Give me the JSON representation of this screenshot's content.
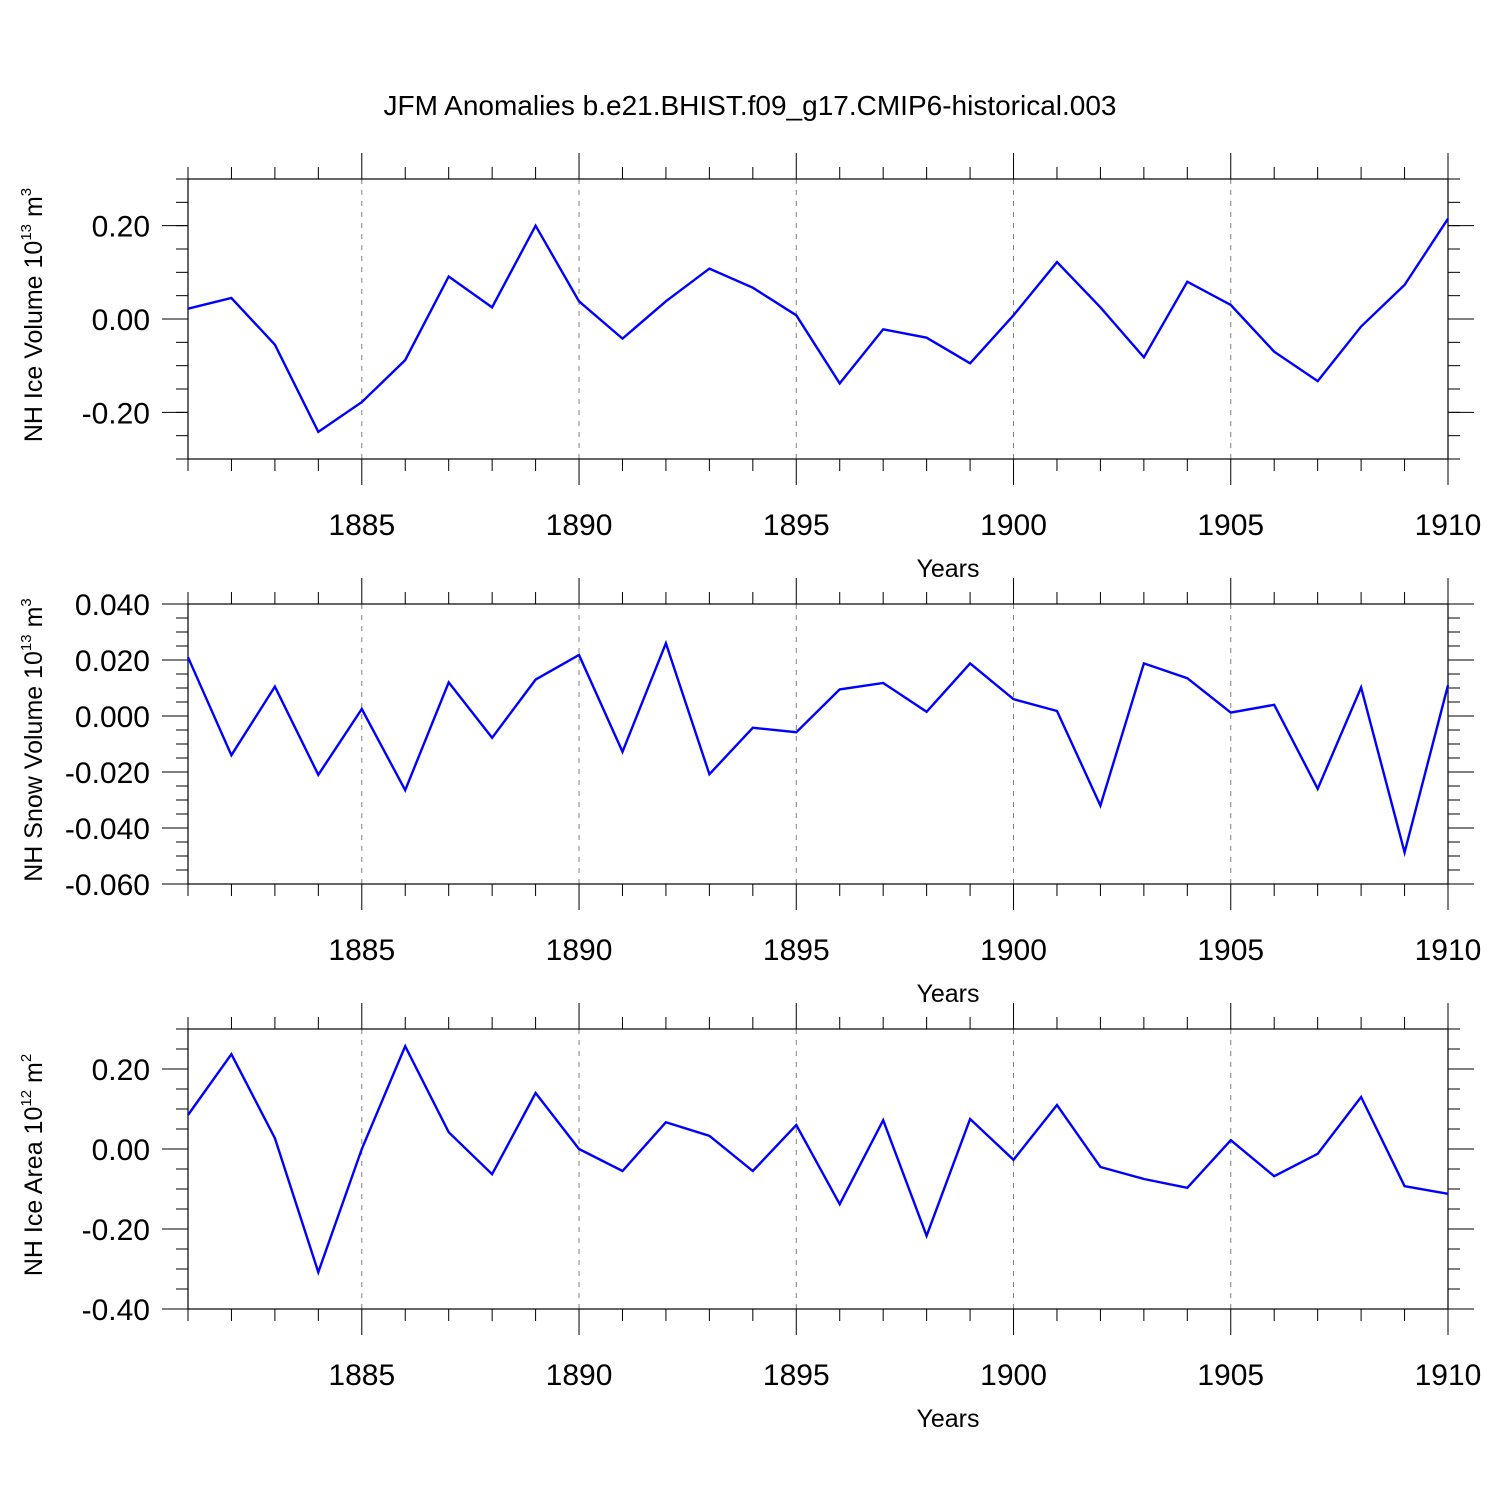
{
  "figure_title": "JFM Anomalies b.e21.BHIST.f09_g17.CMIP6-historical.003",
  "colors": {
    "line": "#0000ff",
    "axis": "#000000",
    "grid": "#808080",
    "background": "#ffffff"
  },
  "chart_data": [
    {
      "type": "line",
      "id": "ice-volume",
      "title": "JFM Anomalies b.e21.BHIST.f09_g17.CMIP6-historical.003",
      "ylabel": {
        "text": "NH Ice Volume 10",
        "exponent": "13",
        "unit": " m",
        "unit_exponent": "3"
      },
      "xlabel": "Years",
      "xlim": [
        1881,
        1910
      ],
      "ylim": [
        -0.3,
        0.3
      ],
      "x_ticks": [
        1885,
        1890,
        1895,
        1900,
        1905,
        1910
      ],
      "x_tick_labels": [
        "1885",
        "1890",
        "1895",
        "1900",
        "1905",
        "1910"
      ],
      "y_ticks": [
        -0.2,
        0.0,
        0.2
      ],
      "y_tick_labels": [
        "-0.20",
        "0.00",
        "0.20"
      ],
      "y_minor_step": 0.05,
      "grid": "dashed vertical at major x ticks",
      "x": [
        1881,
        1882,
        1883,
        1884,
        1885,
        1886,
        1887,
        1888,
        1889,
        1890,
        1891,
        1892,
        1893,
        1894,
        1895,
        1896,
        1897,
        1898,
        1899,
        1900,
        1901,
        1902,
        1903,
        1904,
        1905,
        1906,
        1907,
        1908,
        1909,
        1910
      ],
      "values": [
        0.022,
        0.045,
        -0.055,
        -0.242,
        -0.178,
        -0.088,
        0.091,
        0.025,
        0.2,
        0.038,
        -0.042,
        0.038,
        0.108,
        0.067,
        0.008,
        -0.138,
        -0.022,
        -0.04,
        -0.095,
        0.008,
        0.122,
        0.025,
        -0.082,
        0.08,
        0.03,
        -0.07,
        -0.133,
        -0.016,
        0.073,
        0.215
      ]
    },
    {
      "type": "line",
      "id": "snow-volume",
      "ylabel": {
        "text": "NH Snow Volume 10",
        "exponent": "13",
        "unit": " m",
        "unit_exponent": "3"
      },
      "xlabel": "Years",
      "xlim": [
        1881,
        1910
      ],
      "ylim": [
        -0.06,
        0.04
      ],
      "x_ticks": [
        1885,
        1890,
        1895,
        1900,
        1905,
        1910
      ],
      "x_tick_labels": [
        "1885",
        "1890",
        "1895",
        "1900",
        "1905",
        "1910"
      ],
      "y_ticks": [
        -0.06,
        -0.04,
        -0.02,
        0.0,
        0.02,
        0.04
      ],
      "y_tick_labels": [
        "-0.060",
        "-0.040",
        "-0.020",
        "0.000",
        "0.020",
        "0.040"
      ],
      "y_minor_step": 0.005,
      "grid": "dashed vertical at major x ticks",
      "x": [
        1881,
        1882,
        1883,
        1884,
        1885,
        1886,
        1887,
        1888,
        1889,
        1890,
        1891,
        1892,
        1893,
        1894,
        1895,
        1896,
        1897,
        1898,
        1899,
        1900,
        1901,
        1902,
        1903,
        1904,
        1905,
        1906,
        1907,
        1908,
        1909,
        1910
      ],
      "values": [
        0.021,
        -0.014,
        0.0105,
        -0.021,
        0.0025,
        -0.0265,
        0.012,
        -0.0078,
        0.013,
        0.0218,
        -0.0128,
        0.026,
        -0.0208,
        -0.0042,
        -0.0058,
        0.0095,
        0.0118,
        0.0015,
        0.0188,
        0.006,
        0.0018,
        -0.032,
        0.0188,
        0.0135,
        0.0012,
        0.004,
        -0.026,
        0.0102,
        -0.0487,
        0.011
      ]
    },
    {
      "type": "line",
      "id": "ice-area",
      "ylabel": {
        "text": "NH Ice Area 10",
        "exponent": "12",
        "unit": " m",
        "unit_exponent": "2"
      },
      "xlabel": "Years",
      "xlim": [
        1881,
        1910
      ],
      "ylim": [
        -0.4,
        0.3
      ],
      "x_ticks": [
        1885,
        1890,
        1895,
        1900,
        1905,
        1910
      ],
      "x_tick_labels": [
        "1885",
        "1890",
        "1895",
        "1900",
        "1905",
        "1910"
      ],
      "y_ticks": [
        -0.4,
        -0.2,
        0.0,
        0.2
      ],
      "y_tick_labels": [
        "-0.40",
        "-0.20",
        "0.00",
        "0.20"
      ],
      "y_minor_step": 0.05,
      "grid": "dashed vertical at major x ticks",
      "x": [
        1881,
        1882,
        1883,
        1884,
        1885,
        1886,
        1887,
        1888,
        1889,
        1890,
        1891,
        1892,
        1893,
        1894,
        1895,
        1896,
        1897,
        1898,
        1899,
        1900,
        1901,
        1902,
        1903,
        1904,
        1905,
        1906,
        1907,
        1908,
        1909,
        1910
      ],
      "values": [
        0.085,
        0.237,
        0.027,
        -0.308,
        0.0,
        0.257,
        0.042,
        -0.063,
        0.14,
        0.0,
        -0.055,
        0.067,
        0.033,
        -0.055,
        0.06,
        -0.138,
        0.072,
        -0.217,
        0.075,
        -0.027,
        0.11,
        -0.045,
        -0.075,
        -0.097,
        0.022,
        -0.068,
        -0.012,
        0.13,
        -0.093,
        -0.112
      ]
    }
  ]
}
